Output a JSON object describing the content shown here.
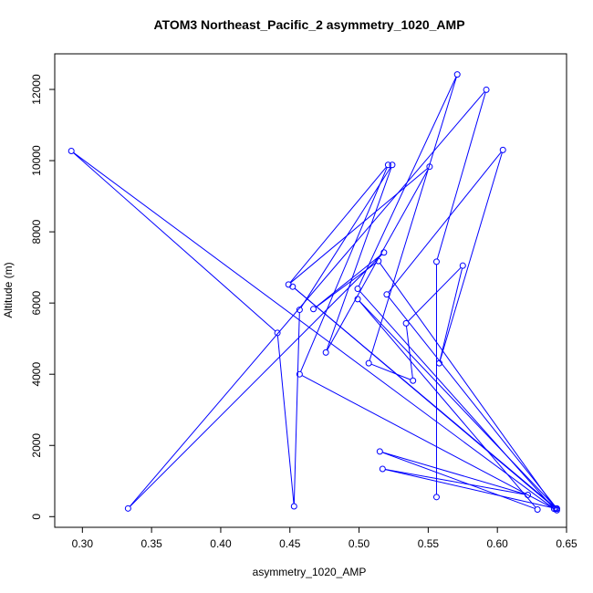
{
  "chart_data": {
    "type": "line",
    "title": "ATOM3 Northeast_Pacific_2 asymmetry_1020_AMP",
    "xlabel": "asymmetry_1020_AMP",
    "ylabel": "Altitude (m)",
    "xlim": [
      0.28,
      0.65
    ],
    "ylim": [
      -300,
      13000
    ],
    "xticks": [
      0.3,
      0.35,
      0.4,
      0.45,
      0.5,
      0.55,
      0.6,
      0.65
    ],
    "xtick_labels": [
      "0.30",
      "0.35",
      "0.40",
      "0.45",
      "0.50",
      "0.55",
      "0.60",
      "0.65"
    ],
    "yticks": [
      0,
      2000,
      4000,
      6000,
      8000,
      10000,
      12000
    ],
    "ytick_labels": [
      "0",
      "2000",
      "4000",
      "6000",
      "8000",
      "10000",
      "12000"
    ],
    "grid": false,
    "legend": "none",
    "series": [
      {
        "color": "#0000ff",
        "marker": "open-circle",
        "points": [
          {
            "x": 0.643,
            "y": 180
          },
          {
            "x": 0.457,
            "y": 4000
          },
          {
            "x": 0.521,
            "y": 9880
          },
          {
            "x": 0.449,
            "y": 6520
          },
          {
            "x": 0.551,
            "y": 9830
          },
          {
            "x": 0.476,
            "y": 4610
          },
          {
            "x": 0.524,
            "y": 9880
          },
          {
            "x": 0.457,
            "y": 5810
          },
          {
            "x": 0.453,
            "y": 290
          },
          {
            "x": 0.441,
            "y": 5160
          },
          {
            "x": 0.292,
            "y": 10270
          },
          {
            "x": 0.641,
            "y": 220
          },
          {
            "x": 0.499,
            "y": 6400
          },
          {
            "x": 0.571,
            "y": 12420
          },
          {
            "x": 0.507,
            "y": 4310
          },
          {
            "x": 0.539,
            "y": 3820
          },
          {
            "x": 0.534,
            "y": 5430
          },
          {
            "x": 0.575,
            "y": 7050
          },
          {
            "x": 0.558,
            "y": 4310
          },
          {
            "x": 0.604,
            "y": 10300
          },
          {
            "x": 0.52,
            "y": 6240
          },
          {
            "x": 0.643,
            "y": 230
          },
          {
            "x": 0.499,
            "y": 6110
          },
          {
            "x": 0.629,
            "y": 200
          },
          {
            "x": 0.515,
            "y": 1830
          },
          {
            "x": 0.622,
            "y": 610
          },
          {
            "x": 0.517,
            "y": 1340
          },
          {
            "x": 0.643,
            "y": 220
          },
          {
            "x": 0.452,
            "y": 6460
          },
          {
            "x": 0.642,
            "y": 230
          },
          {
            "x": 0.514,
            "y": 7180
          },
          {
            "x": 0.467,
            "y": 5830
          },
          {
            "x": 0.518,
            "y": 7420
          },
          {
            "x": 0.333,
            "y": 230
          },
          {
            "x": 0.592,
            "y": 11990
          },
          {
            "x": 0.556,
            "y": 7160
          },
          {
            "x": 0.556,
            "y": 550
          }
        ]
      }
    ]
  }
}
